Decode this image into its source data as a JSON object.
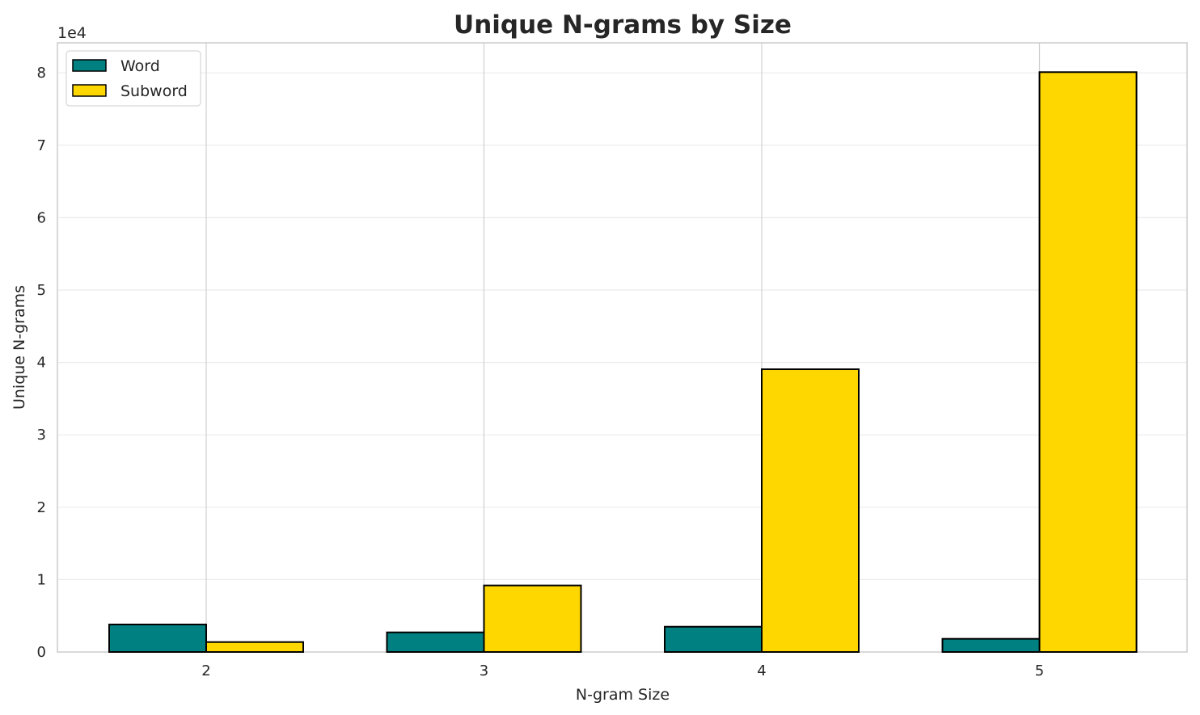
{
  "chart_data": {
    "type": "bar",
    "title": "Unique N-grams by Size",
    "xlabel": "N-gram Size",
    "ylabel": "Unique N-grams",
    "y_offset_label": "1e4",
    "categories": [
      "2",
      "3",
      "4",
      "5"
    ],
    "series": [
      {
        "name": "Word",
        "color": "#008080",
        "values": [
          3800,
          2710,
          3490,
          1820
        ]
      },
      {
        "name": "Subword",
        "color": "#FFD700",
        "values": [
          1370,
          9190,
          39060,
          80100
        ]
      }
    ],
    "yticks": [
      0,
      1,
      2,
      3,
      4,
      5,
      6,
      7,
      8
    ],
    "ylim": [
      0,
      84150
    ],
    "grid": true,
    "legend": "top-left"
  }
}
